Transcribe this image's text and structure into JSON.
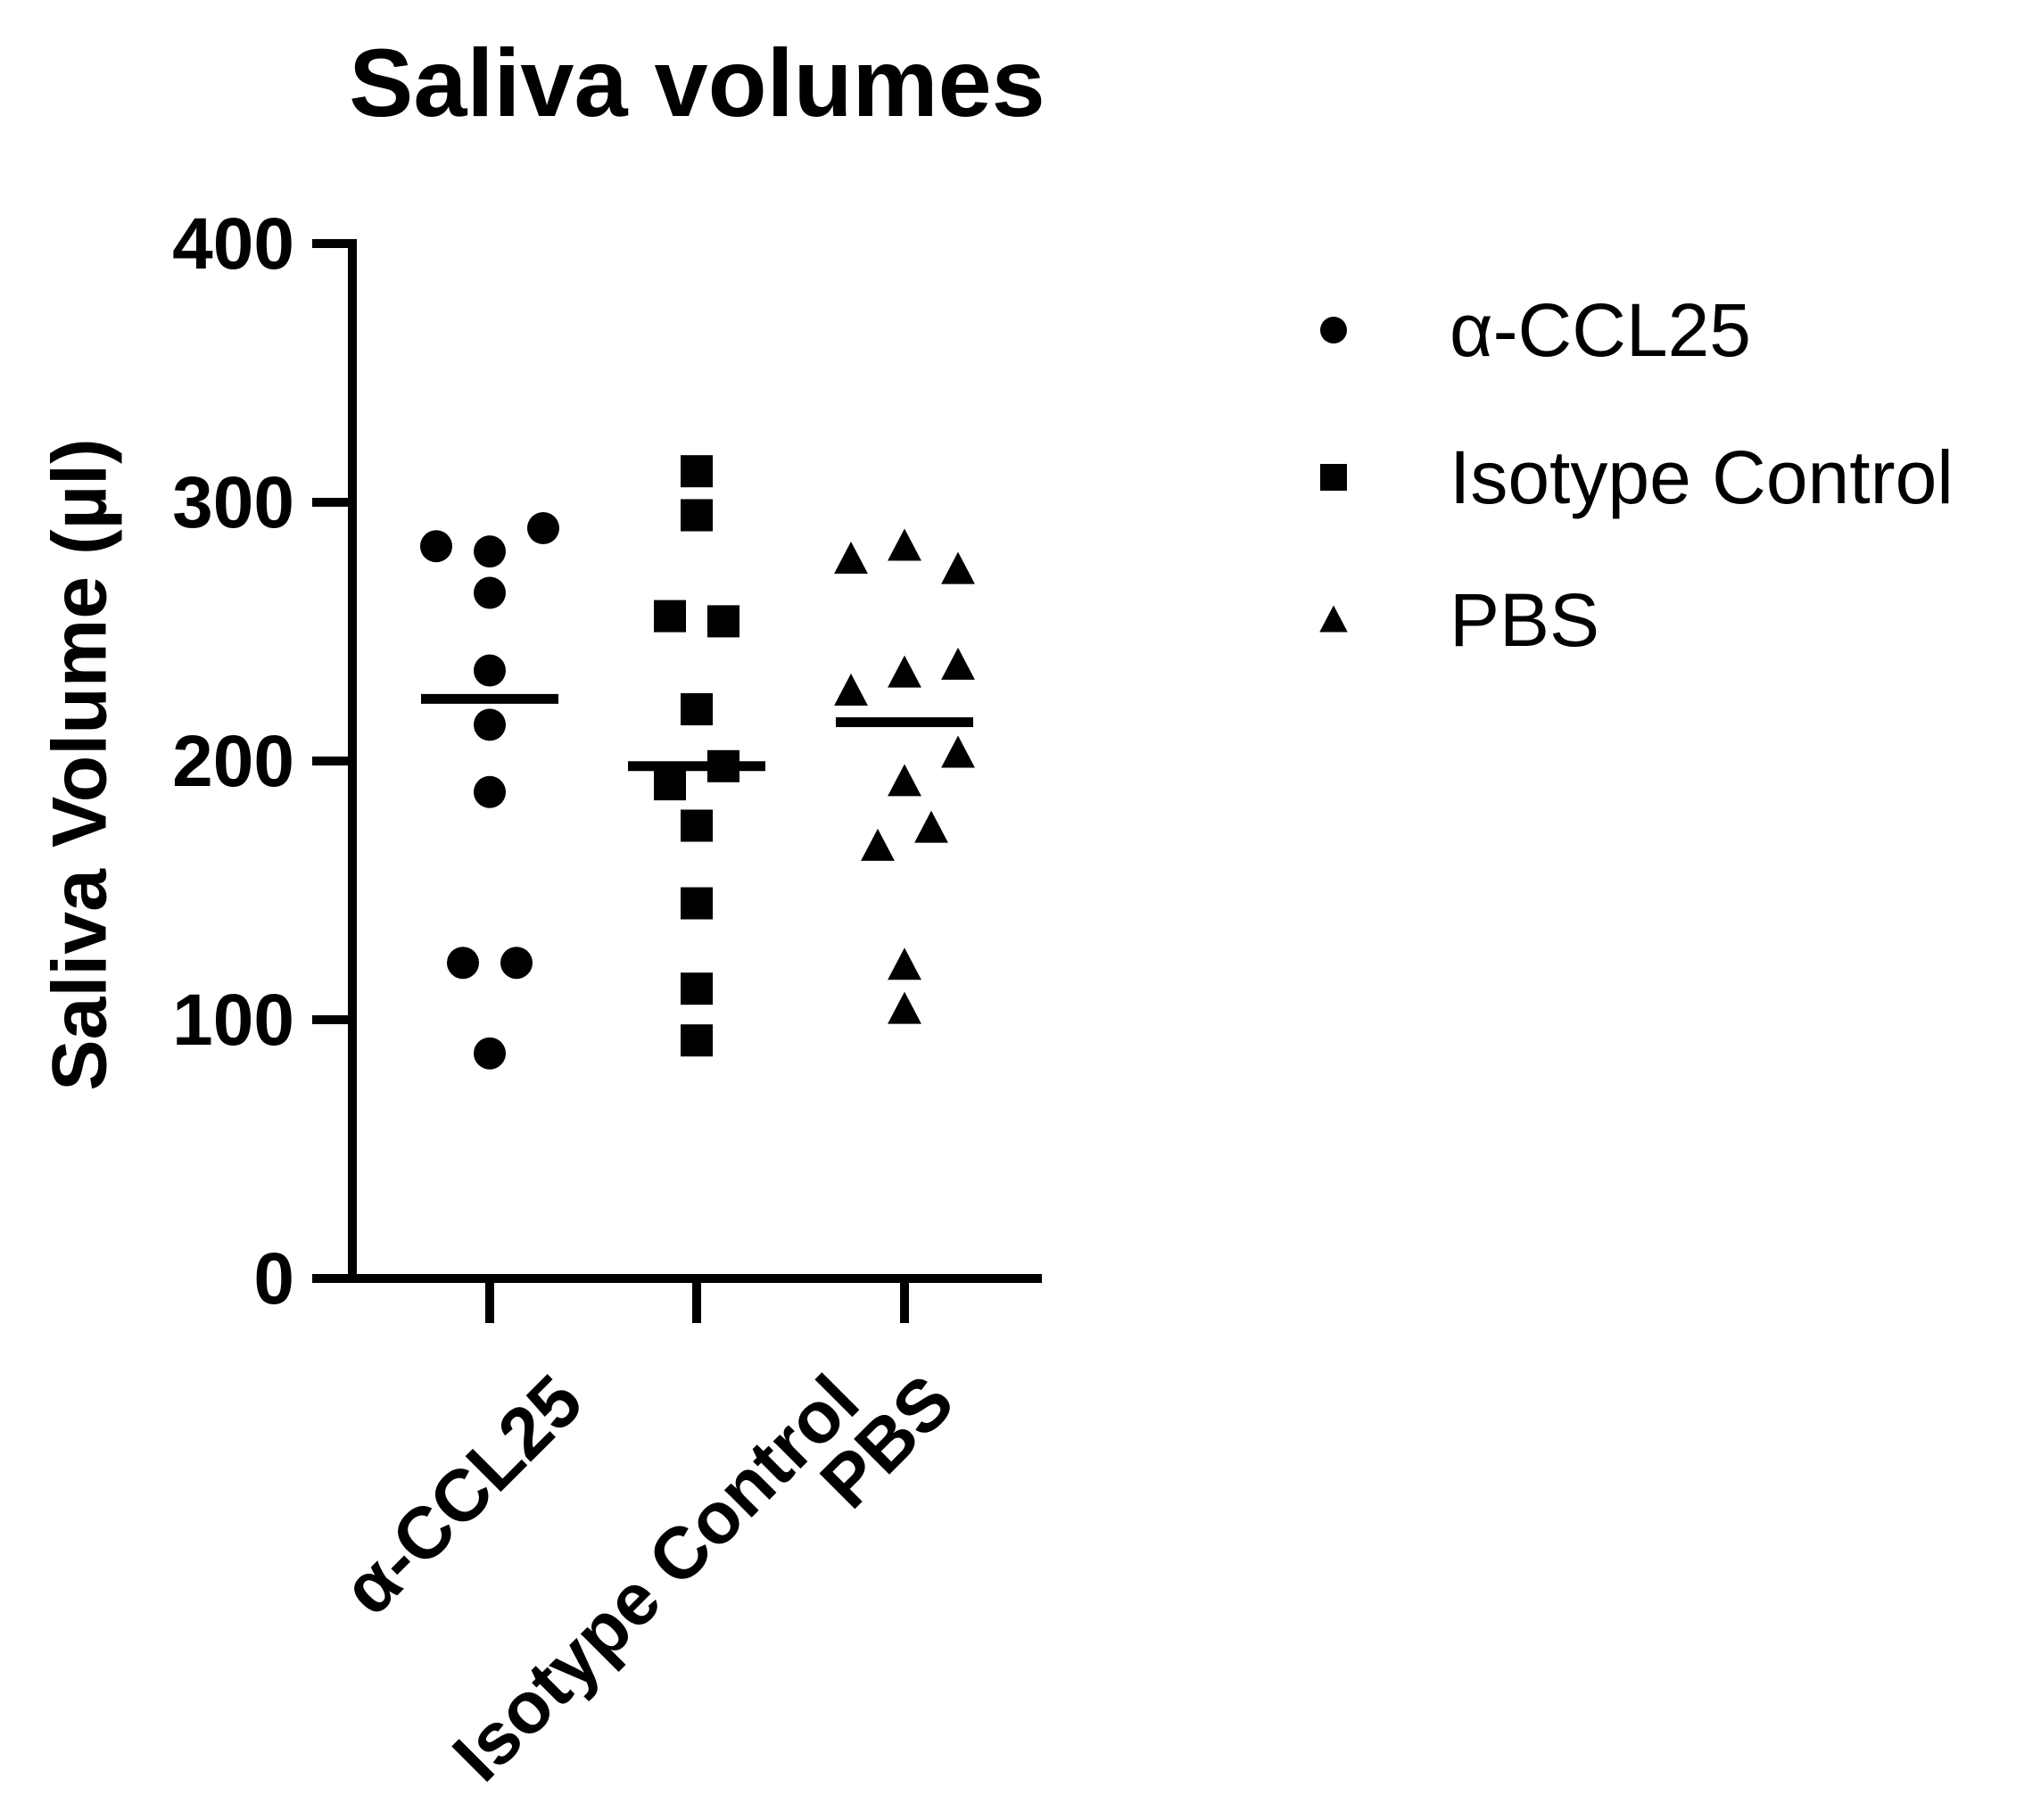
{
  "chart_data": {
    "type": "scatter",
    "title": "Saliva volumes",
    "xlabel": "",
    "ylabel": "Saliva Volume (µl)",
    "ylim": [
      0,
      400
    ],
    "yticks": [
      0,
      100,
      200,
      300,
      400
    ],
    "grid": false,
    "legend_position": "right",
    "categories": [
      "α-CCL25",
      "Isotype Control",
      "PBS"
    ],
    "summary_line": "median",
    "series": [
      {
        "name": "α-CCL25",
        "marker": "circle",
        "values": [
          290,
          283,
          281,
          265,
          235,
          214,
          188,
          122,
          122,
          87
        ],
        "x_offsets": [
          1,
          -1,
          0,
          0,
          0,
          0,
          0,
          -0.5,
          0.5,
          0
        ],
        "median": 224
      },
      {
        "name": "Isotype Control",
        "marker": "square",
        "values": [
          312,
          295,
          256,
          254,
          220,
          198,
          191,
          175,
          145,
          112,
          92
        ],
        "x_offsets": [
          0,
          0,
          -0.5,
          0.5,
          0,
          0.5,
          -0.5,
          0,
          0,
          0,
          0
        ],
        "median": 198
      },
      {
        "name": "PBS",
        "marker": "triangle",
        "values": [
          283,
          278,
          274,
          237,
          234,
          227,
          203,
          192,
          174,
          167,
          121,
          104
        ],
        "x_offsets": [
          0,
          -1,
          1,
          1,
          0,
          -1,
          1,
          0,
          0.5,
          -0.5,
          0,
          0
        ],
        "median": 215
      }
    ],
    "colors": {
      "marker": "#000000",
      "axis": "#000000",
      "background": "#ffffff"
    }
  }
}
